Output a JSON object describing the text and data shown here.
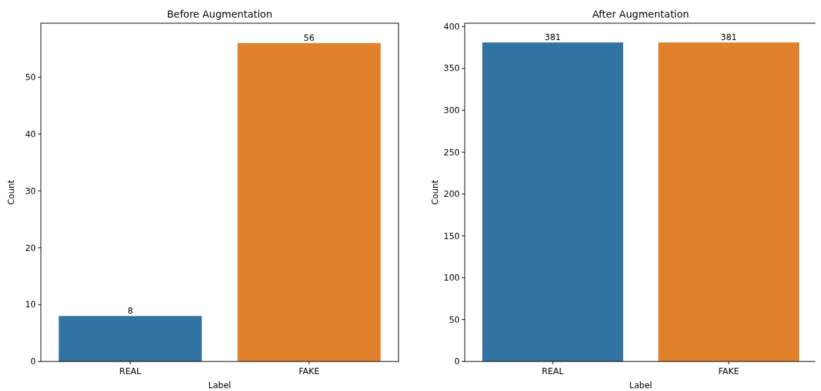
{
  "chart_data": [
    {
      "type": "bar",
      "title": "Before Augmentation",
      "xlabel": "Label",
      "ylabel": "Count",
      "categories": [
        "REAL",
        "FAKE"
      ],
      "values": [
        8,
        56
      ],
      "colors": [
        "#3274a1",
        "#e1812c"
      ],
      "ylim": [
        0,
        59.5
      ],
      "yticks": [
        0,
        10,
        20,
        30,
        40,
        50
      ],
      "data_labels": true
    },
    {
      "type": "bar",
      "title": "After Augmentation",
      "xlabel": "Label",
      "ylabel": "Count",
      "categories": [
        "REAL",
        "FAKE"
      ],
      "values": [
        381,
        381
      ],
      "colors": [
        "#3274a1",
        "#e1812c"
      ],
      "ylim": [
        0,
        404
      ],
      "yticks": [
        0,
        50,
        100,
        150,
        200,
        250,
        300,
        350,
        400
      ],
      "data_labels": true
    }
  ]
}
